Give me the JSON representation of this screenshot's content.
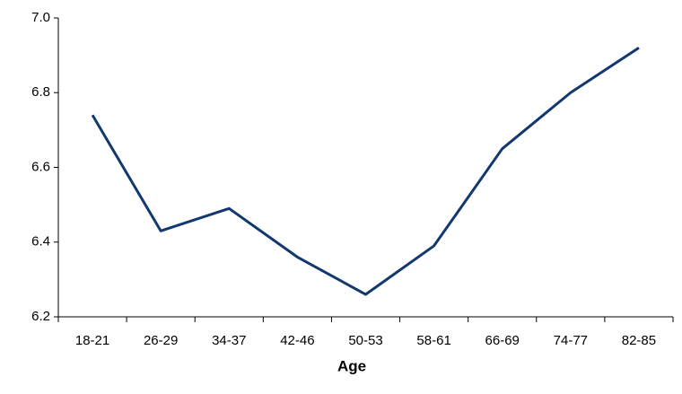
{
  "chart_data": {
    "type": "line",
    "x_label": "Age",
    "categories": [
      "18-21",
      "26-29",
      "34-37",
      "42-46",
      "50-53",
      "58-61",
      "66-69",
      "74-77",
      "82-85"
    ],
    "values": [
      6.74,
      6.43,
      6.49,
      6.36,
      6.26,
      6.39,
      6.65,
      6.8,
      6.92
    ],
    "color": "#12386f",
    "ylim": [
      6.2,
      7.0
    ],
    "yticks": [
      6.2,
      6.4,
      6.6,
      6.8,
      {
        "value": 7.0,
        "label": "7.0"
      }
    ],
    "grid": false
  }
}
